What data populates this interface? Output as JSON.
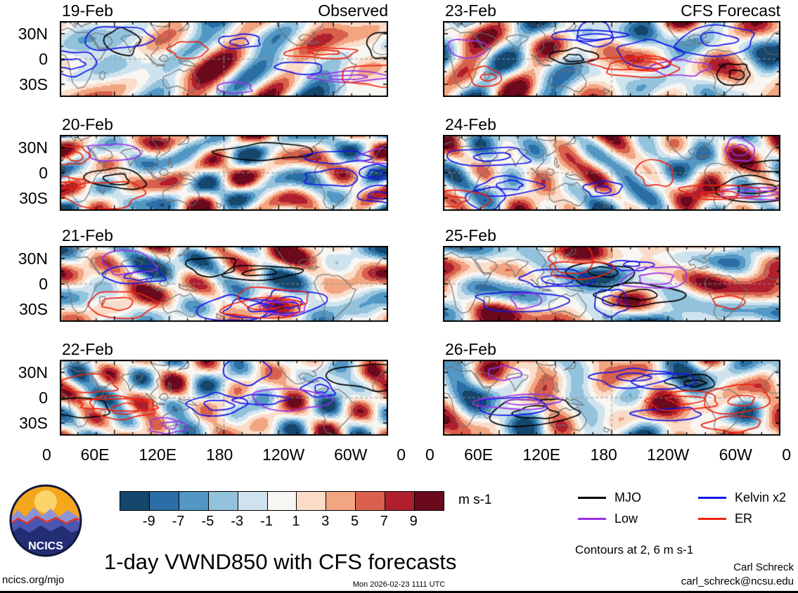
{
  "title": "1-day VWND850 with CFS forecasts",
  "logo": {
    "text": "NCICS"
  },
  "footer": {
    "site": "ncics.org/mjo",
    "timestamp": "Mon 2026-02-23 1111 UTC",
    "credit_name": "Carl Schreck",
    "credit_email": "carl_schreck@ncsu.edu"
  },
  "chart_data": {
    "type": "heatmap",
    "variant": "filled-contour longitude-latitude anomaly maps, 2 columns x 4 rows",
    "variable": "VWND850",
    "units": "m s-1",
    "columns": [
      {
        "header": "Observed",
        "panels": [
          "19-Feb",
          "20-Feb",
          "21-Feb",
          "22-Feb"
        ]
      },
      {
        "header": "CFS Forecast",
        "panels": [
          "23-Feb",
          "24-Feb",
          "25-Feb",
          "26-Feb"
        ]
      }
    ],
    "panels": [
      {
        "date": "19-Feb",
        "column": "Observed"
      },
      {
        "date": "20-Feb",
        "column": "Observed"
      },
      {
        "date": "21-Feb",
        "column": "Observed"
      },
      {
        "date": "22-Feb",
        "column": "Observed"
      },
      {
        "date": "23-Feb",
        "column": "CFS Forecast"
      },
      {
        "date": "24-Feb",
        "column": "CFS Forecast"
      },
      {
        "date": "25-Feb",
        "column": "CFS Forecast"
      },
      {
        "date": "26-Feb",
        "column": "CFS Forecast"
      }
    ],
    "x_ticks": [
      "0",
      "60E",
      "120E",
      "180",
      "120W",
      "60W",
      "0"
    ],
    "y_ticks": [
      "30N",
      "0",
      "30S"
    ],
    "colorbar": {
      "tick_labels": [
        "-9",
        "-7",
        "-5",
        "-3",
        "-1",
        "1",
        "3",
        "5",
        "7",
        "9"
      ],
      "colors": [
        "#15466b",
        "#2b6ea5",
        "#5397c4",
        "#93c2dd",
        "#cfe3ef",
        "#f8f6f2",
        "#fadcc8",
        "#f1a581",
        "#d8604c",
        "#b01f2e",
        "#6a0a1c"
      ],
      "label": "m s-1"
    },
    "legend": [
      {
        "label": "MJO",
        "color": "#000000"
      },
      {
        "label": "Kelvin x2",
        "color": "#1414e8"
      },
      {
        "label": "Low",
        "color": "#9b30e8"
      },
      {
        "label": "ER",
        "color": "#ee2211"
      }
    ],
    "contour_note": "Contours at 2, 6 m s-1"
  }
}
